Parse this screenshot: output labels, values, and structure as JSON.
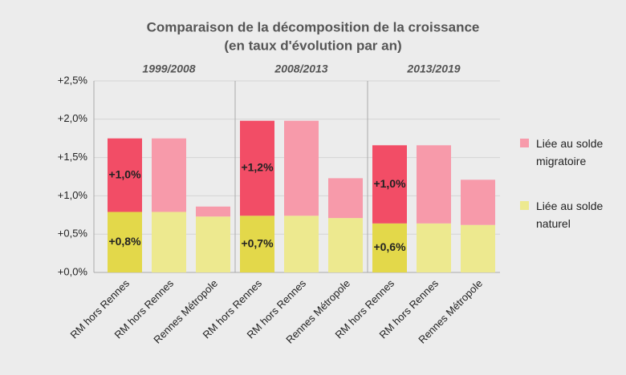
{
  "chart_data": {
    "type": "stacked_bar",
    "title": "Comparaison de la décomposition de la croissance",
    "subtitle": "(en taux d'évolution par an)",
    "groups": [
      "1999/2008",
      "2008/2013",
      "2013/2019"
    ],
    "categories": [
      "RM hors Rennes",
      "RM hors Rennes",
      "Rennes Métropole",
      "RM hors Rennes",
      "RM hors Rennes",
      "Rennes Métropole",
      "RM hors Rennes",
      "RM hors Rennes",
      "Rennes Métropole"
    ],
    "series": [
      {
        "name": "Liée au solde naturel",
        "color": "#ede98f",
        "colors": [
          "#e3d84a",
          "#ede98f",
          "#ede98f",
          "#e3d84a",
          "#ede98f",
          "#ede98f",
          "#e3d84a",
          "#ede98f",
          "#ede98f"
        ],
        "values": [
          0.79,
          0.79,
          0.73,
          0.74,
          0.74,
          0.71,
          0.64,
          0.64,
          0.62
        ],
        "value_labels": [
          "+0,8%",
          null,
          null,
          "+0,7%",
          null,
          null,
          "+0,6%",
          null,
          null
        ]
      },
      {
        "name": "Liée au solde migratoire",
        "color": "#f79aaa",
        "colors": [
          "#f24d66",
          "#f79aaa",
          "#f79aaa",
          "#f24d66",
          "#f79aaa",
          "#f79aaa",
          "#f24d66",
          "#f79aaa",
          "#f79aaa"
        ],
        "values": [
          0.96,
          0.96,
          0.13,
          1.24,
          1.24,
          0.52,
          1.02,
          1.02,
          0.59
        ],
        "value_labels": [
          "+1,0%",
          null,
          null,
          "+1,2%",
          null,
          null,
          "+1,0%",
          null,
          null
        ]
      }
    ],
    "ylim": [
      0,
      2.5
    ],
    "yticks": [
      {
        "value": 0,
        "label": "+0,0%"
      },
      {
        "value": 0.5,
        "label": "+0,5%"
      },
      {
        "value": 1,
        "label": "+1,0%"
      },
      {
        "value": 1.5,
        "label": "+1,5%"
      },
      {
        "value": 2,
        "label": "+2,0%"
      },
      {
        "value": 2.5,
        "label": "+2,5%"
      }
    ],
    "grid": true,
    "legend": "right"
  }
}
